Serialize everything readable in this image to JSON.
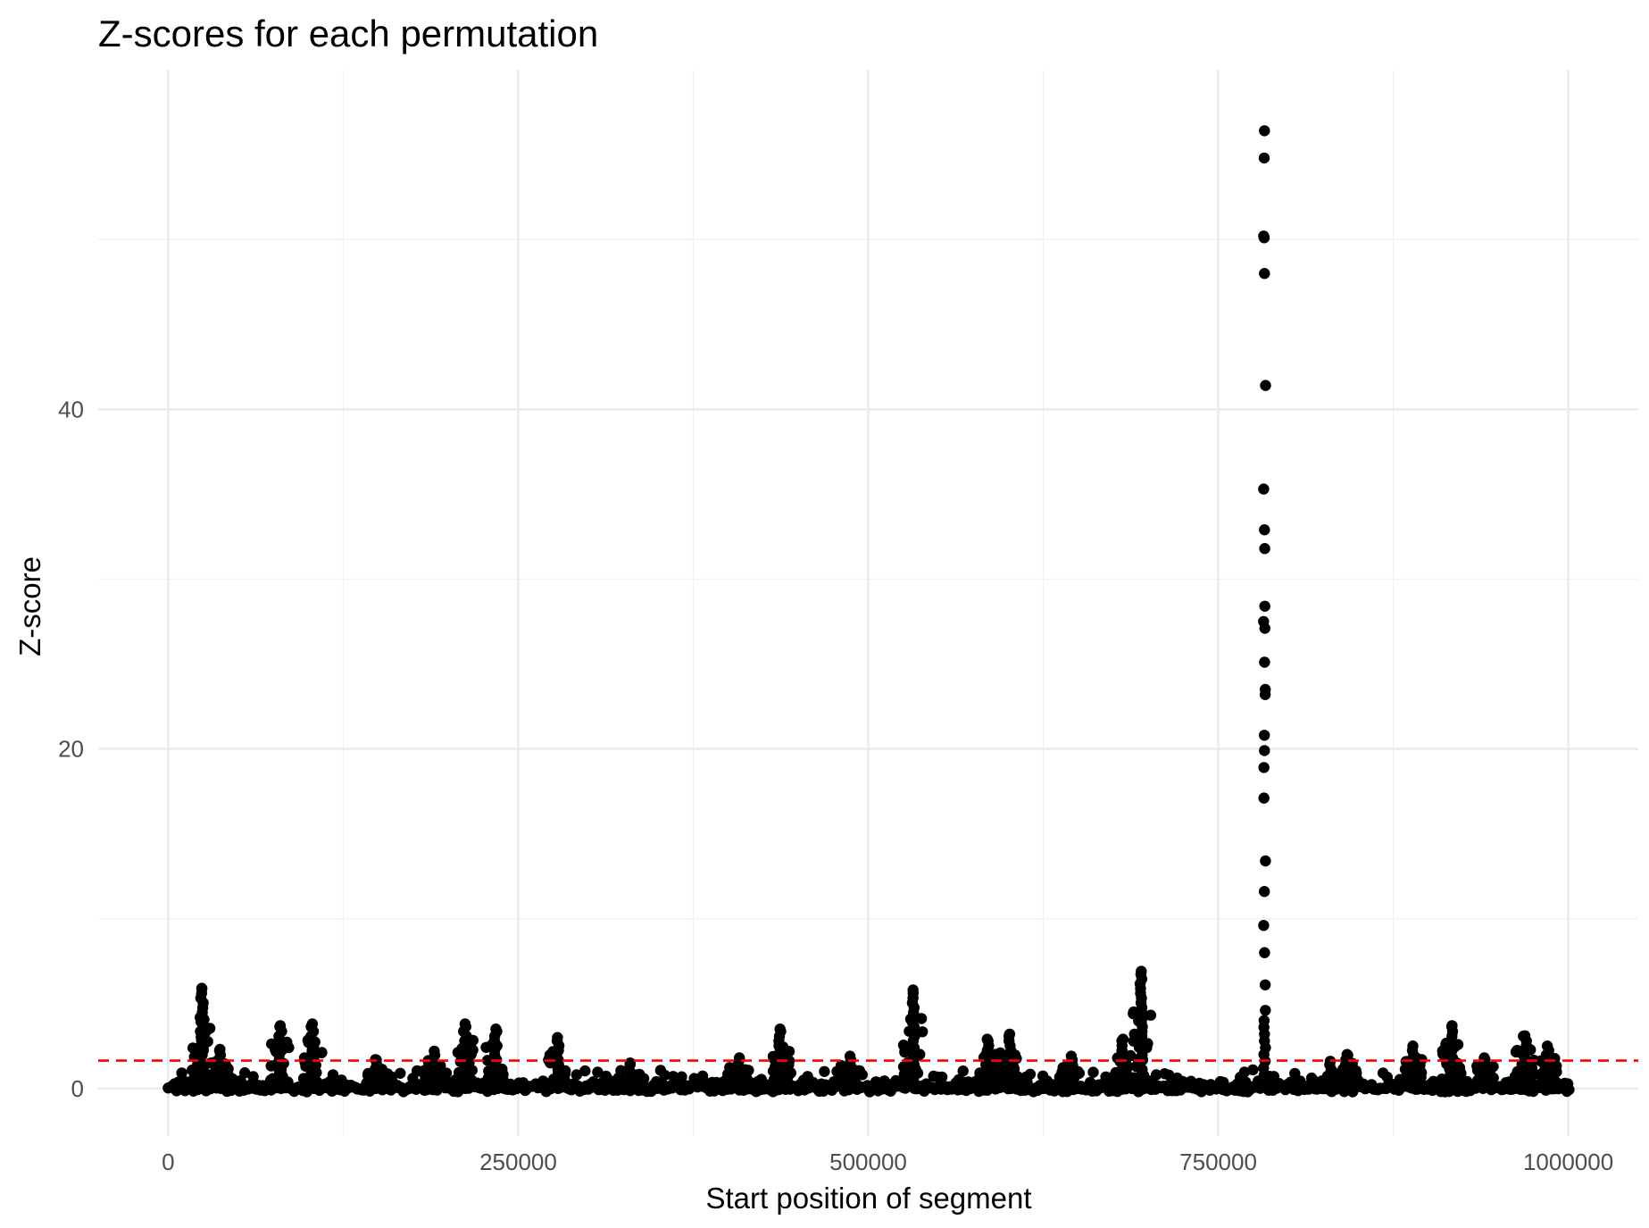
{
  "chart_data": {
    "type": "scatter",
    "title": "Z-scores for each permutation",
    "xlabel": "Start position of segment",
    "ylabel": "Z-score",
    "xlim": [
      -50000,
      1050000
    ],
    "ylim": [
      -2.8,
      60
    ],
    "x_ticks": [
      0,
      250000,
      500000,
      750000,
      1000000
    ],
    "x_tick_labels": [
      "0",
      "250000",
      "500000",
      "750000",
      "1000000"
    ],
    "y_ticks": [
      0,
      20,
      40
    ],
    "y_tick_labels": [
      "0",
      "20",
      "40"
    ],
    "threshold": {
      "value": 1.64,
      "color": "#ff0000",
      "style": "dashed"
    },
    "point_color": "#000000",
    "grid": true,
    "clusters": [
      {
        "x": 24000,
        "max": 5.9
      },
      {
        "x": 37000,
        "max": 2.3
      },
      {
        "x": 80000,
        "max": 3.7
      },
      {
        "x": 103000,
        "max": 3.8
      },
      {
        "x": 148000,
        "max": 1.7
      },
      {
        "x": 190000,
        "max": 2.2
      },
      {
        "x": 212000,
        "max": 3.8
      },
      {
        "x": 234000,
        "max": 3.5
      },
      {
        "x": 278000,
        "max": 3.0
      },
      {
        "x": 330000,
        "max": 1.5
      },
      {
        "x": 408000,
        "max": 1.8
      },
      {
        "x": 437000,
        "max": 3.5
      },
      {
        "x": 487000,
        "max": 1.9
      },
      {
        "x": 532000,
        "max": 5.8
      },
      {
        "x": 585000,
        "max": 2.9
      },
      {
        "x": 601000,
        "max": 3.2
      },
      {
        "x": 645000,
        "max": 1.9
      },
      {
        "x": 682000,
        "max": 2.9
      },
      {
        "x": 695000,
        "max": 6.9
      },
      {
        "x": 830000,
        "max": 1.6
      },
      {
        "x": 842000,
        "max": 2.0
      },
      {
        "x": 889000,
        "max": 2.5
      },
      {
        "x": 917000,
        "max": 3.7
      },
      {
        "x": 940000,
        "max": 1.8
      },
      {
        "x": 969000,
        "max": 3.1
      },
      {
        "x": 985000,
        "max": 2.5
      }
    ],
    "outlier_column": {
      "x": 783000,
      "values": [
        56.4,
        54.8,
        50.2,
        50.1,
        48.0,
        41.4,
        35.3,
        32.9,
        31.8,
        28.4,
        27.5,
        27.1,
        25.1,
        23.5,
        23.2,
        20.8,
        19.9,
        18.9,
        17.1,
        13.4,
        11.6,
        9.6,
        8.0,
        6.1,
        4.6,
        4.0,
        3.6,
        3.2,
        2.8,
        2.4,
        2.0,
        1.6,
        1.2,
        0.8,
        0.4,
        0.1
      ]
    }
  }
}
